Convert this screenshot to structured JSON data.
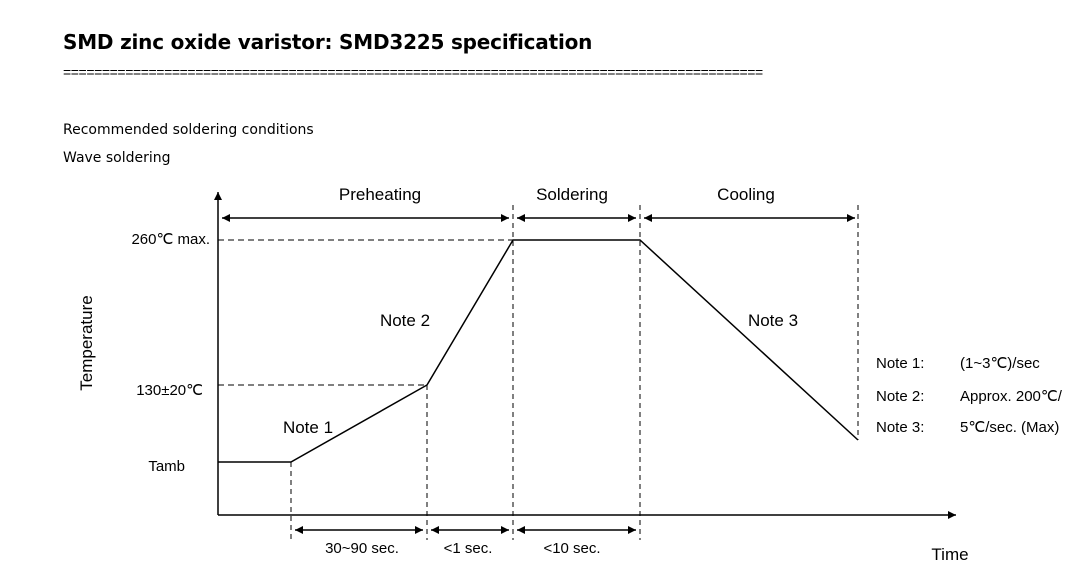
{
  "page": {
    "title": "SMD zinc oxide varistor: SMD3225 specification",
    "separator": "==========================================================================================",
    "label_conditions": "Recommended soldering conditions",
    "label_method": "Wave soldering"
  },
  "diagram": {
    "phases": [
      "Preheating",
      "Soldering",
      "Cooling"
    ],
    "y_labels": {
      "peak": "260℃ max.",
      "preheat": "130±20℃",
      "ambient": "Tamb"
    },
    "axis_labels": {
      "y": "Temperature",
      "x": "Time"
    },
    "curve_labels": [
      "Note 1",
      "Note 2",
      "Note 3"
    ],
    "durations": [
      "30~90 sec.",
      "<1 sec.",
      "<10 sec."
    ],
    "notes": [
      {
        "label": "Note 1:",
        "value": "(1~3℃)/sec"
      },
      {
        "label": "Note 2:",
        "value": "Approx. 200℃/"
      },
      {
        "label": "Note 3:",
        "value": "5℃/sec. (Max)"
      }
    ],
    "colors": {
      "line": "#000000"
    }
  }
}
